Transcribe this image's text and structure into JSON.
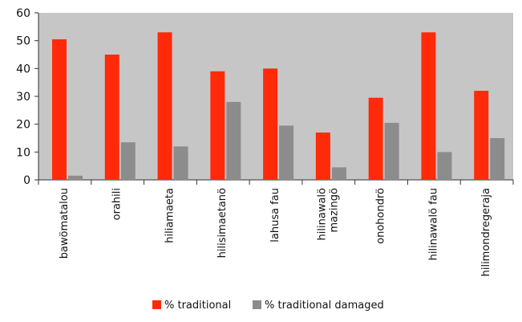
{
  "chart_data": {
    "type": "bar",
    "title": "",
    "xlabel": "",
    "ylabel": "",
    "ylim": [
      0,
      60
    ],
    "yticks": [
      0,
      10,
      20,
      30,
      40,
      50,
      60
    ],
    "grid": false,
    "legend_position": "bottom",
    "categories": [
      [
        "bawömatalou"
      ],
      [
        "orahili"
      ],
      [
        "hiliamaeta"
      ],
      [
        "hilisimaetanö"
      ],
      [
        "lahusa fau"
      ],
      [
        "hilinawalö",
        "mazingö"
      ],
      [
        "onohondrö"
      ],
      [
        "hilinawalö fau"
      ],
      [
        "hilimondregeraja"
      ]
    ],
    "series": [
      {
        "name": "% traditional",
        "color": "#ff2a0a",
        "values": [
          50.5,
          45,
          53,
          39,
          40,
          17,
          29.5,
          53,
          32
        ]
      },
      {
        "name": "% traditional damaged",
        "color": "#8c8c8c",
        "values": [
          1.5,
          13.5,
          12,
          28,
          19.5,
          4.5,
          20.5,
          10,
          15
        ]
      }
    ],
    "plot_background": "#c6c6c6"
  }
}
